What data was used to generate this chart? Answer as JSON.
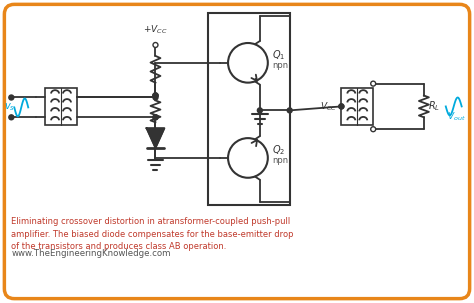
{
  "bg_color": "#ffffff",
  "border_color": "#e8861a",
  "title_text": "Eliminating crossover distortion in atransformer-coupled push-pull\namplifier. The biased diode compensates for the base-emitter drop\nof the transistors and produces class AB operation.",
  "website_text": "www.TheEngineeringKnowledge.com",
  "caption_color": "#c0392b",
  "website_color": "#555555",
  "line_color": "#333333",
  "sine_color": "#00aadd",
  "dot_color": "#333333"
}
